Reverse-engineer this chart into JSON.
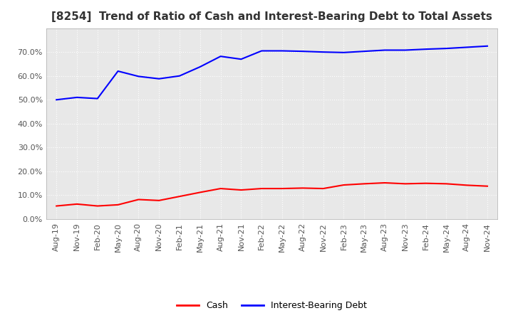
{
  "title": "[8254]  Trend of Ratio of Cash and Interest-Bearing Debt to Total Assets",
  "ylim": [
    0.0,
    0.8
  ],
  "yticks": [
    0.0,
    0.1,
    0.2,
    0.3,
    0.4,
    0.5,
    0.6,
    0.7
  ],
  "plot_bg_color": "#e8e8e8",
  "fig_bg_color": "#ffffff",
  "grid_color": "#ffffff",
  "cash_color": "#ff0000",
  "debt_color": "#0000ff",
  "x_labels": [
    "Aug-19",
    "Nov-19",
    "Feb-20",
    "May-20",
    "Aug-20",
    "Nov-20",
    "Feb-21",
    "May-21",
    "Aug-21",
    "Nov-21",
    "Feb-22",
    "May-22",
    "Aug-22",
    "Nov-22",
    "Feb-23",
    "May-23",
    "Aug-23",
    "Nov-23",
    "Feb-24",
    "May-24",
    "Aug-24",
    "Nov-24"
  ],
  "cash_values": [
    0.055,
    0.063,
    0.055,
    0.06,
    0.082,
    0.078,
    0.095,
    0.112,
    0.128,
    0.122,
    0.128,
    0.128,
    0.13,
    0.128,
    0.143,
    0.148,
    0.152,
    0.148,
    0.15,
    0.148,
    0.142,
    0.138
  ],
  "debt_values": [
    0.5,
    0.51,
    0.505,
    0.62,
    0.598,
    0.588,
    0.6,
    0.638,
    0.682,
    0.67,
    0.705,
    0.705,
    0.703,
    0.7,
    0.698,
    0.703,
    0.708,
    0.708,
    0.712,
    0.715,
    0.72,
    0.725
  ],
  "legend_cash": "Cash",
  "legend_debt": "Interest-Bearing Debt",
  "title_fontsize": 11,
  "tick_fontsize": 8,
  "legend_fontsize": 9
}
